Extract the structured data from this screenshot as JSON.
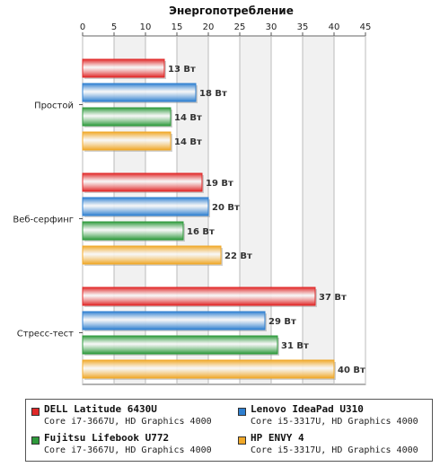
{
  "chart_data": {
    "type": "bar",
    "orientation": "horizontal",
    "title": "Энергопотребление",
    "xlim": [
      0,
      45
    ],
    "ticks": [
      "0",
      "5",
      "10",
      "15",
      "20",
      "25",
      "30",
      "35",
      "40",
      "45"
    ],
    "tick_values": [
      0,
      5,
      10,
      15,
      20,
      25,
      30,
      35,
      40,
      45
    ],
    "grid": true,
    "legend_position": "bottom",
    "categories": [
      "Простой",
      "Веб-серфинг",
      "Стресс-тест"
    ],
    "value_unit": "Вт",
    "series": [
      {
        "name": "DELL Latitude 6430U",
        "detail": "Core i7-3667U, HD Graphics 4000",
        "color": "#e02828",
        "values": [
          13,
          19,
          37
        ]
      },
      {
        "name": "Lenovo IdeaPad U310",
        "detail": "Core i5-3317U, HD Graphics 4000",
        "color": "#2e7fd0",
        "values": [
          18,
          20,
          29
        ]
      },
      {
        "name": "Fujitsu Lifebook U772",
        "detail": "Core i7-3667U, HD Graphics 4000",
        "color": "#2e9a3c",
        "values": [
          14,
          16,
          31
        ]
      },
      {
        "name": "HP ENVY 4",
        "detail": "Core i5-3317U, HD Graphics 4000",
        "color": "#f0a828",
        "values": [
          14,
          22,
          40
        ]
      }
    ]
  }
}
